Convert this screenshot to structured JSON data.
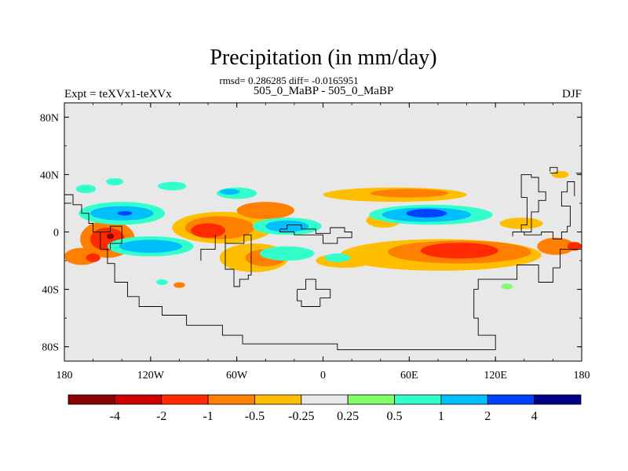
{
  "chart_data": {
    "type": "heatmap",
    "title": "Precipitation (in mm/day)",
    "subtitle": "rmsd= 0.286285 diff= -0.0165951",
    "experiment_label": "Expt = teXVx1-teXVx",
    "case_label": "505_0_MaBP - 505_0_MaBP",
    "season_label": "DJF",
    "x_ticks": [
      "180",
      "120W",
      "60W",
      "0",
      "60E",
      "120E",
      "180"
    ],
    "x_tick_values": [
      -180,
      -120,
      -60,
      0,
      60,
      120,
      180
    ],
    "y_ticks": [
      "80N",
      "40N",
      "0",
      "40S",
      "80S"
    ],
    "y_tick_values": [
      80,
      40,
      0,
      -40,
      -80
    ],
    "xlim": [
      -180,
      180
    ],
    "ylim": [
      -90,
      90
    ],
    "colorbar": {
      "colors": [
        "#8b0000",
        "#cc0000",
        "#ff2a00",
        "#ff7f00",
        "#ffbf00",
        "#e8e8e8",
        "#80ff66",
        "#33ffcc",
        "#00bfff",
        "#0040ff",
        "#00008b"
      ],
      "labels": [
        "-4",
        "-2",
        "-1",
        "-0.5",
        "-0.25",
        "0.25",
        "0.5",
        "1",
        "2",
        "4"
      ],
      "levels": [
        -4,
        -2,
        -1,
        -0.5,
        -0.25,
        0.25,
        0.5,
        1,
        2,
        4
      ]
    },
    "background_color": "#e8e8e8",
    "anomalies": [
      {
        "lon": -150,
        "lat": -5,
        "w": 38,
        "h": 26,
        "level": -0.5
      },
      {
        "lon": -150,
        "lat": -5,
        "w": 24,
        "h": 16,
        "level": -1
      },
      {
        "lon": -168,
        "lat": -17,
        "w": 24,
        "h": 12,
        "level": -0.5
      },
      {
        "lon": -160,
        "lat": -18,
        "w": 10,
        "h": 6,
        "level": -1
      },
      {
        "lon": -148,
        "lat": -3,
        "w": 5,
        "h": 4,
        "level": -4
      },
      {
        "lon": -140,
        "lat": 13,
        "w": 60,
        "h": 16,
        "level": 0.5
      },
      {
        "lon": -140,
        "lat": 13,
        "w": 44,
        "h": 10,
        "level": 1
      },
      {
        "lon": -138,
        "lat": 13,
        "w": 10,
        "h": 3,
        "level": 2
      },
      {
        "lon": -120,
        "lat": -10,
        "w": 60,
        "h": 14,
        "level": 0.5
      },
      {
        "lon": -120,
        "lat": -10,
        "w": 44,
        "h": 9,
        "level": 1
      },
      {
        "lon": -70,
        "lat": 3,
        "w": 70,
        "h": 22,
        "level": -0.25
      },
      {
        "lon": -72,
        "lat": 3,
        "w": 48,
        "h": 16,
        "level": -0.5
      },
      {
        "lon": -80,
        "lat": 1,
        "w": 24,
        "h": 10,
        "level": -1
      },
      {
        "lon": -40,
        "lat": 15,
        "w": 40,
        "h": 12,
        "level": -0.5
      },
      {
        "lon": -25,
        "lat": 4,
        "w": 48,
        "h": 12,
        "level": 0.5
      },
      {
        "lon": -25,
        "lat": 4,
        "w": 30,
        "h": 8,
        "level": 1
      },
      {
        "lon": -48,
        "lat": -18,
        "w": 48,
        "h": 20,
        "level": -0.25
      },
      {
        "lon": -40,
        "lat": -18,
        "w": 28,
        "h": 12,
        "level": -0.5
      },
      {
        "lon": -25,
        "lat": -15,
        "w": 38,
        "h": 10,
        "level": 0.5
      },
      {
        "lon": 42,
        "lat": 8,
        "w": 24,
        "h": 10,
        "level": -0.25
      },
      {
        "lon": 75,
        "lat": 12,
        "w": 86,
        "h": 14,
        "level": 0.5
      },
      {
        "lon": 72,
        "lat": 12,
        "w": 62,
        "h": 10,
        "level": 1
      },
      {
        "lon": 72,
        "lat": 13,
        "w": 28,
        "h": 6,
        "level": 2
      },
      {
        "lon": 50,
        "lat": 26,
        "w": 100,
        "h": 10,
        "level": -0.25
      },
      {
        "lon": 60,
        "lat": 27,
        "w": 54,
        "h": 6,
        "level": -0.5
      },
      {
        "lon": 82,
        "lat": -16,
        "w": 140,
        "h": 22,
        "level": -0.25
      },
      {
        "lon": 95,
        "lat": -14,
        "w": 100,
        "h": 16,
        "level": -0.5
      },
      {
        "lon": 95,
        "lat": -13,
        "w": 54,
        "h": 11,
        "level": -1
      },
      {
        "lon": 162,
        "lat": -10,
        "w": 26,
        "h": 12,
        "level": -0.5
      },
      {
        "lon": 175,
        "lat": -10,
        "w": 10,
        "h": 6,
        "level": -1
      },
      {
        "lon": 15,
        "lat": -20,
        "w": 40,
        "h": 10,
        "level": -0.25
      },
      {
        "lon": 10,
        "lat": -18,
        "w": 18,
        "h": 6,
        "level": 0.5
      },
      {
        "lon": -165,
        "lat": 30,
        "w": 14,
        "h": 6,
        "level": 0.5
      },
      {
        "lon": -105,
        "lat": 32,
        "w": 20,
        "h": 6,
        "level": 0.5
      },
      {
        "lon": -60,
        "lat": 27,
        "w": 28,
        "h": 8,
        "level": 0.5
      },
      {
        "lon": -65,
        "lat": 28,
        "w": 14,
        "h": 4,
        "level": 1
      },
      {
        "lon": -145,
        "lat": 35,
        "w": 12,
        "h": 5,
        "level": 0.5
      },
      {
        "lon": 165,
        "lat": 40,
        "w": 12,
        "h": 5,
        "level": -0.25
      },
      {
        "lon": 138,
        "lat": 6,
        "w": 30,
        "h": 8,
        "level": -0.25
      },
      {
        "lon": -100,
        "lat": -37,
        "w": 8,
        "h": 4,
        "level": -0.5
      },
      {
        "lon": -112,
        "lat": -35,
        "w": 8,
        "h": 4,
        "level": 0.5
      },
      {
        "lon": 128,
        "lat": -38,
        "w": 8,
        "h": 4,
        "level": 0.25
      }
    ],
    "coastlines": [
      [
        [
          -180,
          26
        ],
        [
          -174,
          26
        ],
        [
          -174,
          19
        ],
        [
          -168,
          19
        ],
        [
          -168,
          13
        ],
        [
          -163,
          13
        ],
        [
          -163,
          6
        ],
        [
          -160,
          6
        ],
        [
          -160,
          0
        ],
        [
          -155,
          0
        ],
        [
          -155,
          -12
        ],
        [
          -150,
          -12
        ],
        [
          -150,
          -22
        ],
        [
          -145,
          -22
        ],
        [
          -145,
          -35
        ],
        [
          -136,
          -35
        ],
        [
          -136,
          -45
        ],
        [
          -128,
          -45
        ],
        [
          -128,
          -52
        ],
        [
          -112,
          -52
        ],
        [
          -112,
          -58
        ],
        [
          -95,
          -58
        ],
        [
          -95,
          -65
        ],
        [
          -70,
          -65
        ],
        [
          -70,
          -72
        ],
        [
          -56,
          -72
        ],
        [
          -56,
          -78
        ],
        [
          10,
          -78
        ],
        [
          10,
          -82
        ],
        [
          120,
          -82
        ],
        [
          120,
          -72
        ],
        [
          108,
          -72
        ],
        [
          108,
          -60
        ],
        [
          105,
          -60
        ],
        [
          105,
          -40
        ],
        [
          108,
          -40
        ],
        [
          108,
          -33
        ],
        [
          135,
          -33
        ],
        [
          135,
          -23
        ],
        [
          150,
          -23
        ],
        [
          150,
          -35
        ],
        [
          160,
          -35
        ],
        [
          160,
          -25
        ],
        [
          165,
          -25
        ],
        [
          165,
          -12
        ],
        [
          180,
          -12
        ]
      ],
      [
        [
          -155,
          0
        ],
        [
          -148,
          0
        ],
        [
          -148,
          4
        ],
        [
          -140,
          4
        ],
        [
          -140,
          -8
        ],
        [
          -148,
          -8
        ],
        [
          -148,
          -12
        ]
      ],
      [
        [
          -68,
          -2
        ],
        [
          -68,
          -26
        ],
        [
          -62,
          -26
        ],
        [
          -62,
          -38
        ],
        [
          -58,
          -38
        ],
        [
          -58,
          -33
        ],
        [
          -52,
          -33
        ],
        [
          -52,
          -30
        ],
        [
          -50,
          -30
        ],
        [
          -50,
          -2
        ],
        [
          -55,
          -2
        ],
        [
          -55,
          -8
        ],
        [
          -68,
          -8
        ]
      ],
      [
        [
          -75,
          -2
        ],
        [
          -75,
          -12
        ],
        [
          -85,
          -12
        ],
        [
          -85,
          -20
        ]
      ],
      [
        [
          -30,
          2
        ],
        [
          -25,
          2
        ],
        [
          -25,
          5
        ],
        [
          -15,
          5
        ],
        [
          -15,
          2
        ],
        [
          -5,
          2
        ],
        [
          -5,
          -1
        ],
        [
          5,
          -1
        ],
        [
          5,
          3
        ],
        [
          15,
          3
        ],
        [
          15,
          0
        ],
        [
          20,
          0
        ],
        [
          20,
          -4
        ],
        [
          10,
          -4
        ],
        [
          10,
          -8
        ],
        [
          0,
          -8
        ],
        [
          0,
          -2
        ],
        [
          -20,
          -2
        ],
        [
          -20,
          0
        ],
        [
          -30,
          0
        ],
        [
          -30,
          2
        ]
      ],
      [
        [
          -18,
          -40
        ],
        [
          -18,
          -48
        ],
        [
          -15,
          -48
        ],
        [
          -15,
          -52
        ],
        [
          -2,
          -52
        ],
        [
          -2,
          -46
        ],
        [
          5,
          -46
        ],
        [
          5,
          -40
        ],
        [
          -5,
          -40
        ],
        [
          -5,
          -33
        ],
        [
          -12,
          -33
        ],
        [
          -12,
          -40
        ],
        [
          -18,
          -40
        ]
      ],
      [
        [
          138,
          35
        ],
        [
          138,
          40
        ],
        [
          145,
          40
        ],
        [
          145,
          38
        ],
        [
          150,
          38
        ],
        [
          150,
          28
        ],
        [
          155,
          28
        ],
        [
          155,
          22
        ],
        [
          150,
          22
        ],
        [
          150,
          14
        ],
        [
          145,
          14
        ],
        [
          145,
          0
        ],
        [
          138,
          0
        ],
        [
          138,
          5
        ],
        [
          142,
          5
        ],
        [
          142,
          24
        ],
        [
          138,
          24
        ],
        [
          138,
          35
        ]
      ],
      [
        [
          158,
          42
        ],
        [
          158,
          45
        ],
        [
          163,
          45
        ],
        [
          163,
          41
        ],
        [
          158,
          41
        ]
      ],
      [
        [
          175,
          25
        ],
        [
          175,
          35
        ],
        [
          170,
          35
        ],
        [
          170,
          28
        ],
        [
          166,
          28
        ],
        [
          166,
          18
        ],
        [
          172,
          18
        ],
        [
          172,
          4
        ],
        [
          170,
          4
        ],
        [
          170,
          0
        ],
        [
          166,
          0
        ],
        [
          166,
          -5
        ],
        [
          160,
          -5
        ],
        [
          160,
          0
        ],
        [
          152,
          0
        ],
        [
          152,
          -2
        ],
        [
          140,
          -2
        ],
        [
          140,
          0
        ],
        [
          132,
          0
        ],
        [
          132,
          -3
        ]
      ],
      [
        [
          176,
          41
        ],
        [
          180,
          41
        ]
      ],
      [
        [
          -180,
          20
        ],
        [
          -175,
          20
        ]
      ]
    ]
  }
}
